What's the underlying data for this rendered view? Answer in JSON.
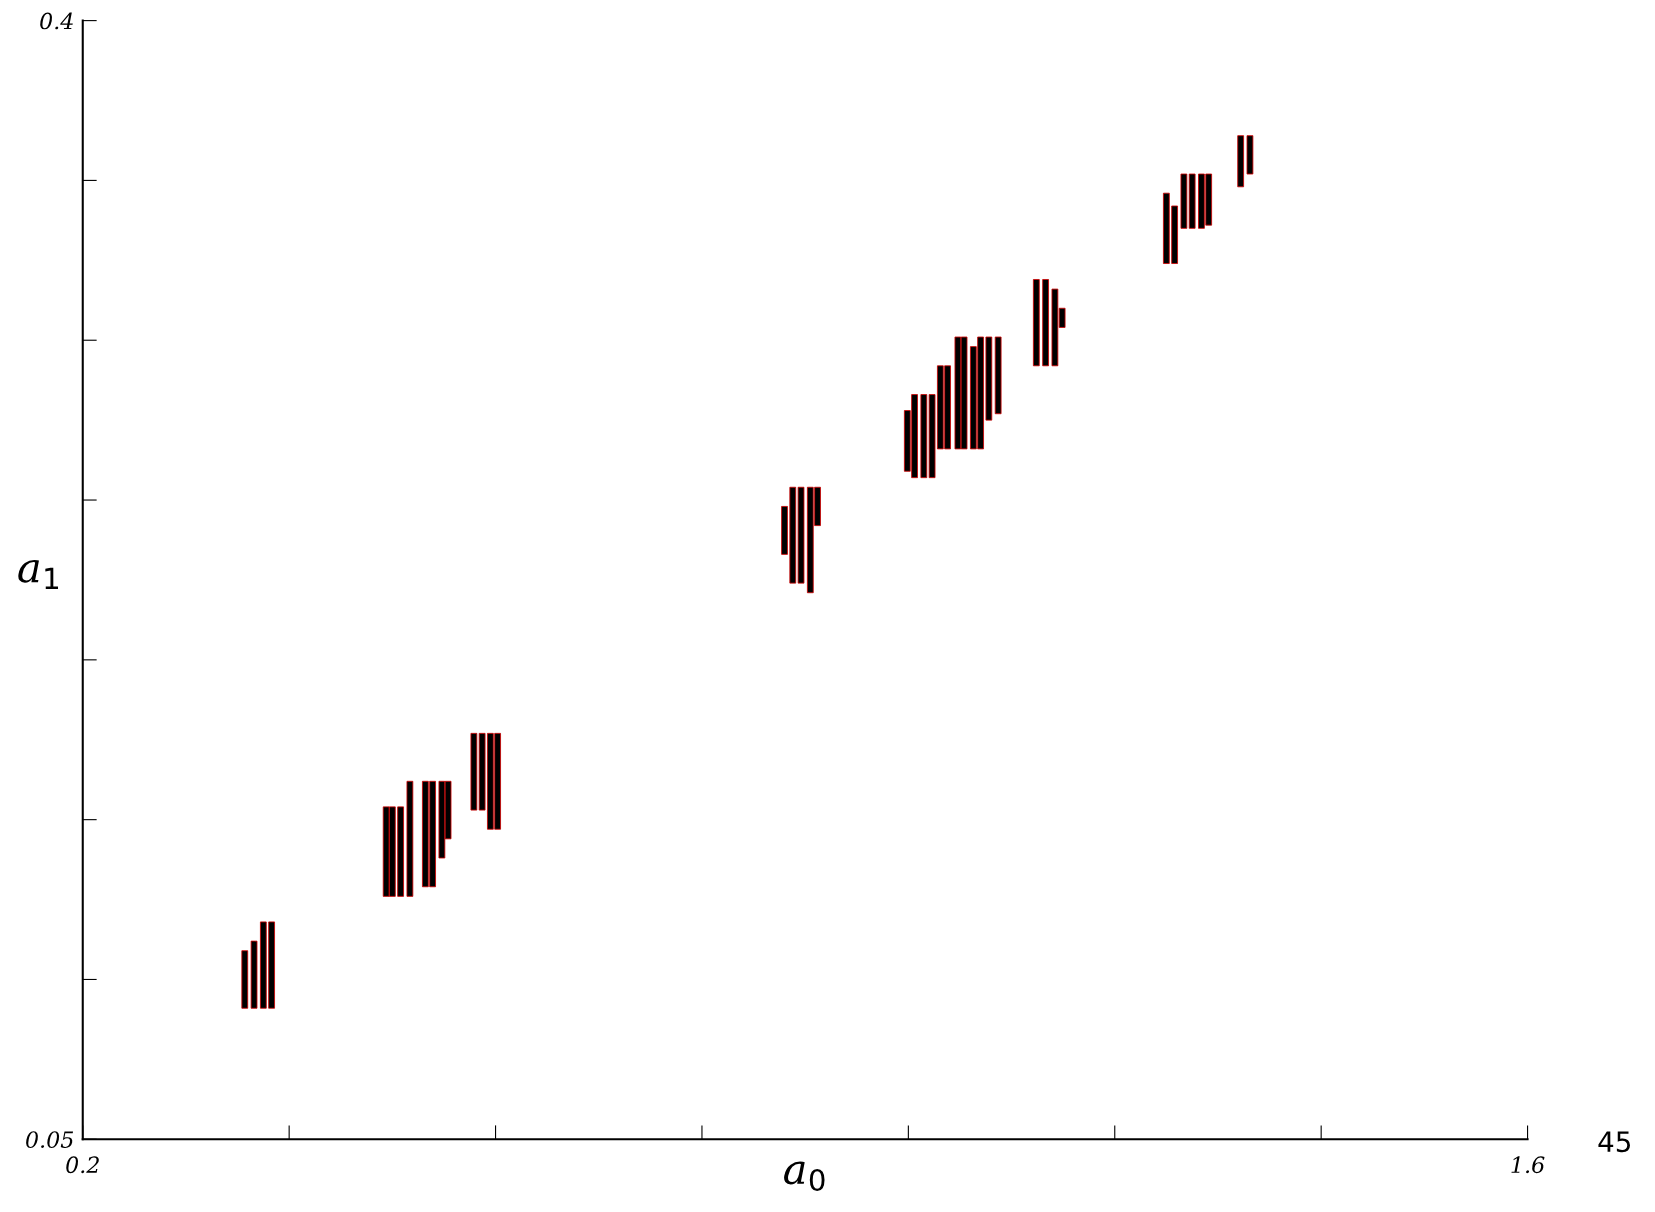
{
  "chart_data": {
    "type": "bar",
    "xlabel": "a$_{0}$",
    "ylabel": "a$_{1}$",
    "x": [
      0.357,
      0.366,
      0.375,
      0.383,
      0.494,
      0.5,
      0.508,
      0.517,
      0.532,
      0.539,
      0.548,
      0.554,
      0.579,
      0.587,
      0.595,
      0.602,
      0.88,
      0.888,
      0.896,
      0.905,
      0.912,
      0.999,
      1.006,
      1.015,
      1.023,
      1.031,
      1.038,
      1.048,
      1.054,
      1.063,
      1.07,
      1.078,
      1.087,
      1.124,
      1.133,
      1.142,
      1.149,
      1.25,
      1.258,
      1.267,
      1.275,
      1.284,
      1.291,
      1.322,
      1.331
    ],
    "base": [
      0.091,
      0.091,
      0.091,
      0.091,
      0.126,
      0.126,
      0.126,
      0.126,
      0.129,
      0.129,
      0.138,
      0.144,
      0.153,
      0.153,
      0.147,
      0.147,
      0.233,
      0.224,
      0.224,
      0.221,
      0.242,
      0.259,
      0.257,
      0.257,
      0.257,
      0.266,
      0.266,
      0.266,
      0.266,
      0.266,
      0.266,
      0.275,
      0.277,
      0.292,
      0.292,
      0.292,
      0.304,
      0.324,
      0.324,
      0.335,
      0.335,
      0.335,
      0.336,
      0.348,
      0.352
    ],
    "values": [
      0.018,
      0.021,
      0.027,
      0.027,
      0.028,
      0.028,
      0.028,
      0.036,
      0.033,
      0.033,
      0.024,
      0.018,
      0.024,
      0.024,
      0.03,
      0.03,
      0.015,
      0.03,
      0.03,
      0.033,
      0.012,
      0.019,
      0.026,
      0.026,
      0.026,
      0.026,
      0.026,
      0.035,
      0.035,
      0.032,
      0.035,
      0.026,
      0.024,
      0.027,
      0.027,
      0.024,
      0.006,
      0.022,
      0.018,
      0.017,
      0.017,
      0.017,
      0.016,
      0.016,
      0.012
    ],
    "color": "#000000",
    "xlim": [
      0.2,
      1.6
    ],
    "xticks": [
      0.2,
      {
        "value": 0.4,
        "label": null
      },
      {
        "value": 0.6,
        "label": null
      },
      {
        "value": 0.8,
        "label": null
      },
      {
        "value": 1.0,
        "label": null
      },
      {
        "value": 1.2,
        "label": null
      },
      {
        "value": 1.4,
        "label": null
      },
      1.6
    ],
    "ylim": [
      0.05,
      0.4
    ],
    "yticks": [
      0.05,
      {
        "value": 0.1,
        "label": null
      },
      {
        "value": 0.15,
        "label": null
      },
      {
        "value": 0.2,
        "label": null
      },
      {
        "value": 0.25,
        "label": null
      },
      {
        "value": 0.3,
        "label": null
      },
      {
        "value": 0.35,
        "label": null
      },
      0.4
    ],
    "grid": false,
    "legend": false,
    "annotations": [
      "45"
    ]
  }
}
